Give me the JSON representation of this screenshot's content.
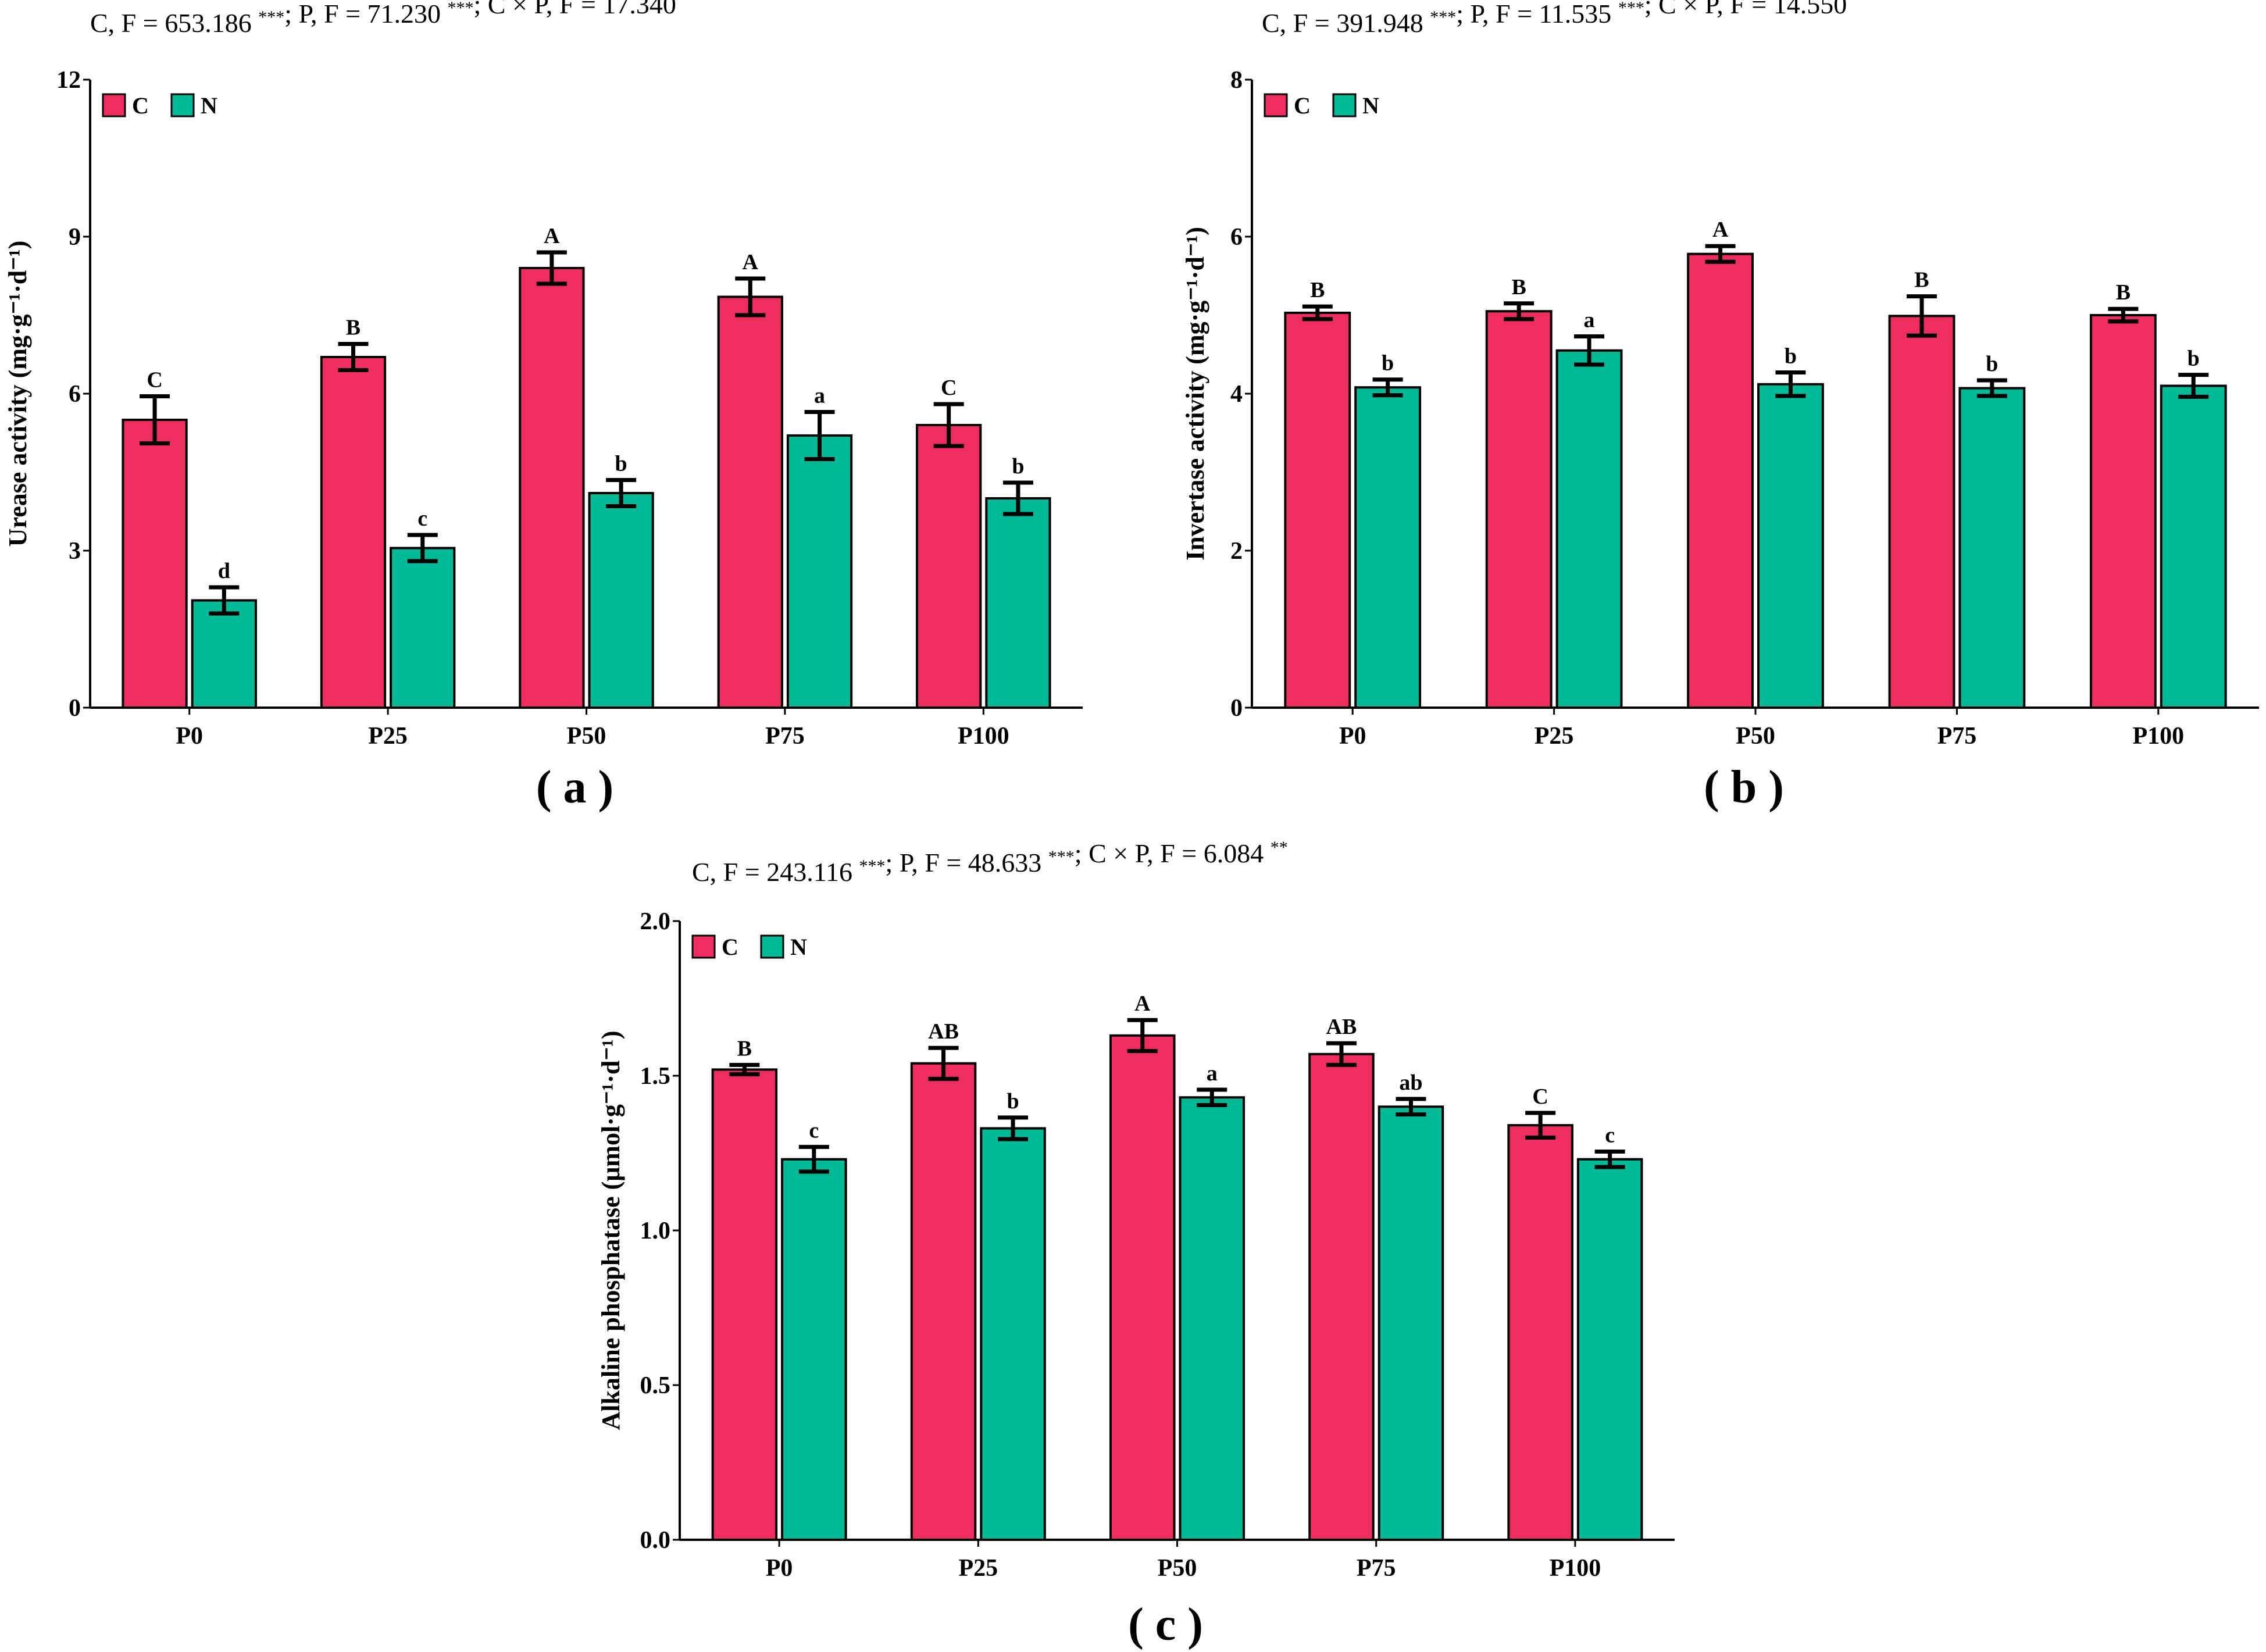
{
  "colors": {
    "C": "#ee2e5e",
    "N": "#00ba97",
    "axis": "#000000"
  },
  "chart_data": [
    {
      "type": "bar",
      "panel": "( a )",
      "title_parts": [
        {
          "text": "C, F = 653.186 "
        },
        {
          "sup": "***"
        },
        {
          "text": "; P, F = 71.230 "
        },
        {
          "sup": "***"
        },
        {
          "text": "; C × P,  F = 17.340 "
        },
        {
          "sup": "***"
        }
      ],
      "ylabel": "Urease activity (mg·g⁻¹·d⁻¹)",
      "ylim": [
        0,
        12
      ],
      "yticks": [
        "0",
        "3",
        "6",
        "9",
        "12"
      ],
      "ytick_values": [
        0,
        3,
        6,
        9,
        12
      ],
      "categories": [
        "P0",
        "P25",
        "P50",
        "P75",
        "P100"
      ],
      "legend": [
        "C",
        "N"
      ],
      "series": [
        {
          "name": "C",
          "values": [
            5.5,
            6.7,
            8.4,
            7.85,
            5.4
          ],
          "errors": [
            0.45,
            0.25,
            0.3,
            0.35,
            0.4
          ],
          "labels": [
            "C",
            "B",
            "A",
            "A",
            "C"
          ]
        },
        {
          "name": "N",
          "values": [
            2.05,
            3.05,
            4.1,
            5.2,
            4.0
          ],
          "errors": [
            0.25,
            0.25,
            0.25,
            0.45,
            0.3
          ],
          "labels": [
            "d",
            "c",
            "b",
            "a",
            "b"
          ]
        }
      ]
    },
    {
      "type": "bar",
      "panel": "( b )",
      "title_parts": [
        {
          "text": "C, F = 391.948 "
        },
        {
          "sup": "***"
        },
        {
          "text": "; P, F = 11.535 "
        },
        {
          "sup": "***"
        },
        {
          "text": "; C × P,  F = 14.550 "
        },
        {
          "sup": "***"
        }
      ],
      "ylabel": "Invertase activity (mg·g⁻¹·d⁻¹)",
      "ylim": [
        0,
        8
      ],
      "yticks": [
        "0",
        "2",
        "4",
        "6",
        "8"
      ],
      "ytick_values": [
        0,
        2,
        4,
        6,
        8
      ],
      "categories": [
        "P0",
        "P25",
        "P50",
        "P75",
        "P100"
      ],
      "legend": [
        "C",
        "N"
      ],
      "series": [
        {
          "name": "C",
          "values": [
            5.03,
            5.05,
            5.78,
            4.99,
            5.0
          ],
          "errors": [
            0.08,
            0.1,
            0.1,
            0.25,
            0.08
          ],
          "labels": [
            "B",
            "B",
            "A",
            "B",
            "B"
          ]
        },
        {
          "name": "N",
          "values": [
            4.08,
            4.55,
            4.12,
            4.07,
            4.1
          ],
          "errors": [
            0.1,
            0.18,
            0.15,
            0.1,
            0.14
          ],
          "labels": [
            "b",
            "a",
            "b",
            "b",
            "b"
          ]
        }
      ]
    },
    {
      "type": "bar",
      "panel": "( c )",
      "title_parts": [
        {
          "text": "C, F = 243.116 "
        },
        {
          "sup": "***"
        },
        {
          "text": "; P, F = 48.633 "
        },
        {
          "sup": "***"
        },
        {
          "text": "; C × P,  F = 6.084 "
        },
        {
          "sup": "**"
        }
      ],
      "ylabel": "Alkaline phosphatase (μmol·g⁻¹·d⁻¹)",
      "ylim": [
        0,
        2.0
      ],
      "yticks": [
        "0.0",
        "0.5",
        "1.0",
        "1.5",
        "2.0"
      ],
      "ytick_values": [
        0,
        0.5,
        1.0,
        1.5,
        2.0
      ],
      "categories": [
        "P0",
        "P25",
        "P50",
        "P75",
        "P100"
      ],
      "legend": [
        "C",
        "N"
      ],
      "series": [
        {
          "name": "C",
          "values": [
            1.52,
            1.54,
            1.63,
            1.57,
            1.34
          ],
          "errors": [
            0.015,
            0.05,
            0.05,
            0.035,
            0.04
          ],
          "labels": [
            "B",
            "AB",
            "A",
            "AB",
            "C"
          ]
        },
        {
          "name": "N",
          "values": [
            1.23,
            1.33,
            1.43,
            1.4,
            1.23
          ],
          "errors": [
            0.04,
            0.035,
            0.025,
            0.025,
            0.025
          ],
          "labels": [
            "c",
            "b",
            "a",
            "ab",
            "c"
          ]
        }
      ]
    }
  ]
}
